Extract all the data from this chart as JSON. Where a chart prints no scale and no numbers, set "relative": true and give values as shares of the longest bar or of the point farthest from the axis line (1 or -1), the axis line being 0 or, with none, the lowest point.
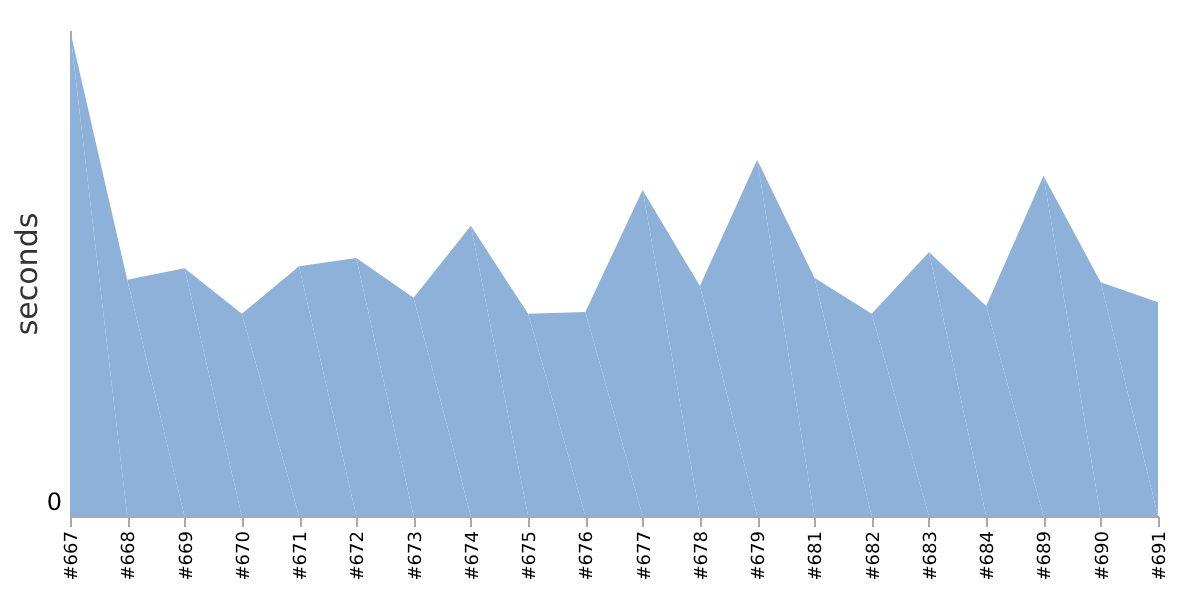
{
  "chart_data": {
    "type": "area",
    "ylabel": "seconds",
    "relative": true,
    "annotations": [
      "0"
    ],
    "categories": [
      "#667",
      "#668",
      "#669",
      "#670",
      "#671",
      "#672",
      "#673",
      "#674",
      "#675",
      "#676",
      "#677",
      "#678",
      "#679",
      "#681",
      "#682",
      "#683",
      "#684",
      "#689",
      "#690",
      "#691"
    ],
    "series": [
      {
        "color": "#8eb1d9",
        "values": [
          1.0,
          0.486,
          0.51,
          0.416,
          0.514,
          0.531,
          0.449,
          0.597,
          0.416,
          0.42,
          0.671,
          0.473,
          0.733,
          0.49,
          0.416,
          0.543,
          0.432,
          0.7,
          0.481,
          0.44
        ]
      }
    ]
  }
}
